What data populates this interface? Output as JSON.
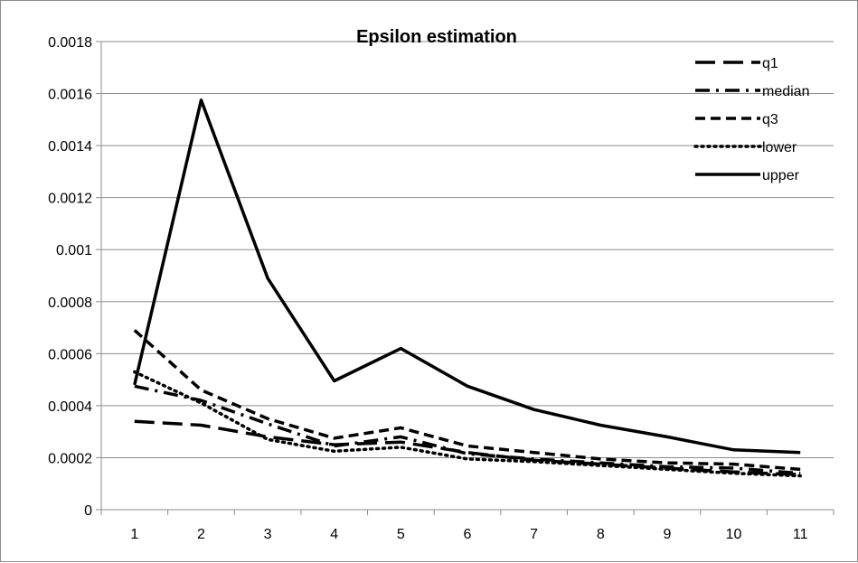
{
  "chart_data": {
    "type": "line",
    "title": "Epsilon estimation",
    "xlabel": "",
    "ylabel": "",
    "x": [
      1,
      2,
      3,
      4,
      5,
      6,
      7,
      8,
      9,
      10,
      11
    ],
    "x_tick_labels": [
      "1",
      "2",
      "3",
      "4",
      "5",
      "6",
      "7",
      "8",
      "9",
      "10",
      "11"
    ],
    "ylim": [
      0,
      0.0018
    ],
    "y_ticks": [
      0,
      0.0002,
      0.0004,
      0.0006,
      0.0008,
      0.001,
      0.0012,
      0.0014,
      0.0016,
      0.0018
    ],
    "y_tick_labels": [
      "0",
      "0.0002",
      "0.0004",
      "0.0006",
      "0.0008",
      "0.001",
      "0.0012",
      "0.0014",
      "0.0016",
      "0.0018"
    ],
    "grid": "horizontal",
    "legend_position": "top-right",
    "line_color": "#000000",
    "series": [
      {
        "name": "q1",
        "style": "long-dash",
        "values": [
          0.00034,
          0.000325,
          0.00028,
          0.00025,
          0.00026,
          0.00022,
          0.00019,
          0.000175,
          0.00016,
          0.000145,
          0.000135
        ]
      },
      {
        "name": "median",
        "style": "dash-dot",
        "values": [
          0.000475,
          0.00042,
          0.00033,
          0.000245,
          0.00028,
          0.000215,
          0.000195,
          0.00018,
          0.000165,
          0.00016,
          0.00014
        ]
      },
      {
        "name": "q3",
        "style": "dash",
        "values": [
          0.00069,
          0.00046,
          0.00035,
          0.000275,
          0.000315,
          0.000245,
          0.00022,
          0.000195,
          0.00018,
          0.000175,
          0.000155
        ]
      },
      {
        "name": "lower",
        "style": "dot",
        "values": [
          0.00053,
          0.00041,
          0.00027,
          0.000225,
          0.00024,
          0.000195,
          0.000185,
          0.00017,
          0.000155,
          0.00014,
          0.00013
        ]
      },
      {
        "name": "upper",
        "style": "solid",
        "values": [
          0.00048,
          0.001575,
          0.00089,
          0.000495,
          0.00062,
          0.000475,
          0.000385,
          0.000325,
          0.00028,
          0.00023,
          0.00022
        ]
      }
    ]
  }
}
